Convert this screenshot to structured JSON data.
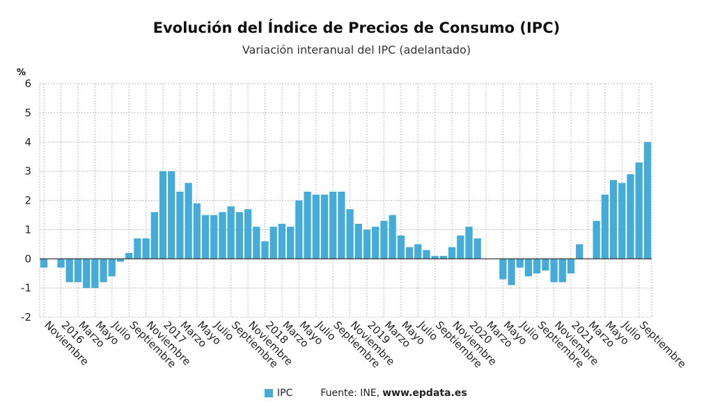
{
  "title": "Evolución del Índice de Precios de Consumo (IPC)",
  "subtitle": "Variación interanual del IPC (adelantado)",
  "unit": "%",
  "legend": {
    "name": "IPC",
    "color": "#45acd8"
  },
  "source": {
    "prefix": "Fuente: INE,",
    "site": "www.epdata.es"
  },
  "colors": {
    "bar": "#45acd8",
    "grid": "#bbbbbb",
    "axis": "#333333"
  },
  "chart_data": {
    "type": "bar",
    "ylabel": "%",
    "ylim": [
      -2,
      6
    ],
    "yticks": [
      -2,
      -1,
      0,
      1,
      2,
      3,
      4,
      5,
      6
    ],
    "grid": true,
    "legend_position": "bottom",
    "x_tick_labels": [
      "Noviembre",
      "2016",
      "Marzo",
      "Mayo",
      "Julio",
      "Septiembre",
      "Noviembre",
      "2017",
      "Marzo",
      "Mayo",
      "Julio",
      "Septiembre",
      "Noviembre",
      "2018",
      "Marzo",
      "Mayo",
      "Julio",
      "Septiembre",
      "Noviembre",
      "2019",
      "Marzo",
      "Mayo",
      "Julio",
      "Septiembre",
      "Noviembre",
      "2020",
      "Marzo",
      "Mayo",
      "Julio",
      "Septiembre",
      "Noviembre",
      "2021",
      "Marzo",
      "Mayo",
      "Julio",
      "Septiembre"
    ],
    "series": [
      {
        "name": "IPC",
        "values": [
          -0.3,
          0.0,
          -0.3,
          -0.8,
          -0.8,
          -1.0,
          -1.0,
          -0.8,
          -0.6,
          -0.1,
          0.2,
          0.7,
          0.7,
          1.6,
          3.0,
          3.0,
          2.3,
          2.6,
          1.9,
          1.5,
          1.5,
          1.6,
          1.8,
          1.6,
          1.7,
          1.1,
          0.6,
          1.1,
          1.2,
          1.1,
          2.0,
          2.3,
          2.2,
          2.2,
          2.3,
          2.3,
          1.7,
          1.2,
          1.0,
          1.1,
          1.3,
          1.5,
          0.8,
          0.4,
          0.5,
          0.3,
          0.1,
          0.1,
          0.4,
          0.8,
          1.1,
          0.7,
          0.0,
          0.0,
          -0.7,
          -0.9,
          -0.3,
          -0.6,
          -0.5,
          -0.4,
          -0.8,
          -0.8,
          -0.5,
          0.5,
          0.0,
          1.3,
          2.2,
          2.7,
          2.6,
          2.9,
          3.3,
          4.0
        ]
      }
    ]
  }
}
